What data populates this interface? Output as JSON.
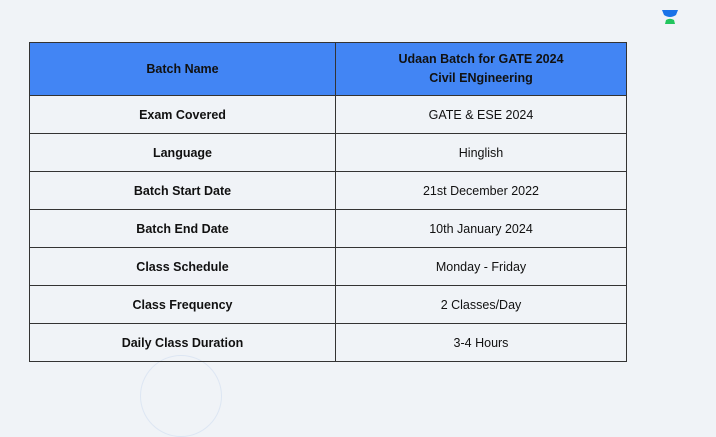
{
  "logo": {
    "icon": "unacademy-logo-icon",
    "colors": {
      "top": "#1a73e8",
      "bottom": "#22c55e"
    }
  },
  "table": {
    "header_color": "#4285f4",
    "header": {
      "label": "Batch Name",
      "value_line1": "Udaan Batch for GATE 2024",
      "value_line2": "Civil ENgineering"
    },
    "rows": [
      {
        "label": "Exam Covered",
        "value": "GATE & ESE 2024"
      },
      {
        "label": "Language",
        "value": "Hinglish"
      },
      {
        "label": "Batch Start Date",
        "value": "21st December 2022"
      },
      {
        "label": "Batch End Date",
        "value": "10th January 2024"
      },
      {
        "label": "Class Schedule",
        "value": "Monday - Friday"
      },
      {
        "label": "Class Frequency",
        "value": "2 Classes/Day"
      },
      {
        "label": "Daily Class Duration",
        "value": "3-4 Hours"
      }
    ]
  }
}
